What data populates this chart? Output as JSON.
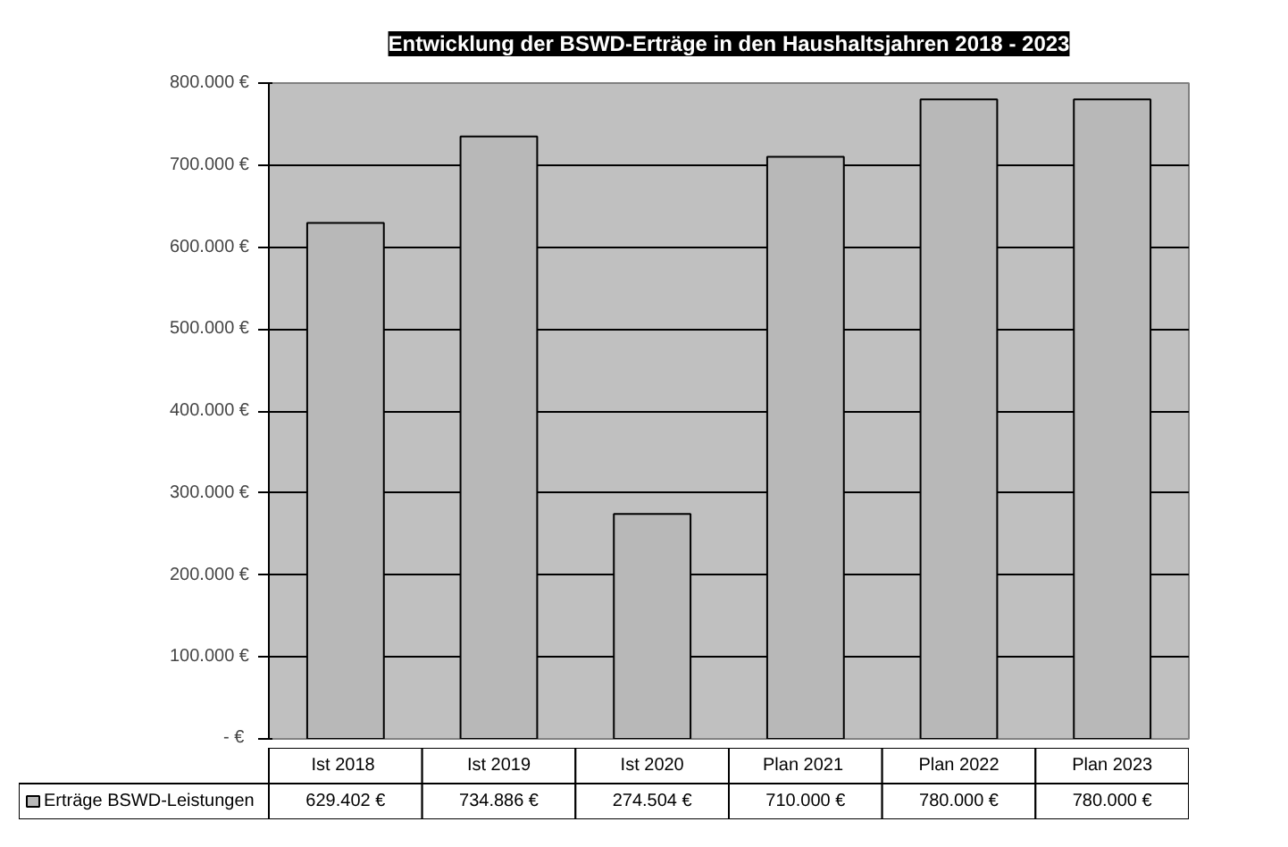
{
  "chart_data": {
    "type": "bar",
    "title": "Entwicklung der BSWD-Erträge in den Haushaltsjahren 2018 - 2023",
    "categories": [
      "Ist  2018",
      "Ist 2019",
      "Ist 2020",
      "Plan  2021",
      "Plan 2022",
      "Plan 2023"
    ],
    "series": [
      {
        "name": "Erträge BSWD-Leistungen",
        "color": "#b8b8b8",
        "values": [
          629402,
          734886,
          274504,
          710000,
          780000,
          780000
        ],
        "value_labels": [
          "629.402 €",
          "734.886 €",
          "274.504 €",
          "710.000 €",
          "780.000 €",
          "780.000 €"
        ]
      }
    ],
    "ylim": [
      0,
      800000
    ],
    "yticks": [
      {
        "value": 0,
        "label": "-  €"
      },
      {
        "value": 100000,
        "label": "100.000 €"
      },
      {
        "value": 200000,
        "label": "200.000 €"
      },
      {
        "value": 300000,
        "label": "300.000 €"
      },
      {
        "value": 400000,
        "label": "400.000 €"
      },
      {
        "value": 500000,
        "label": "500.000 €"
      },
      {
        "value": 600000,
        "label": "600.000 €"
      },
      {
        "value": 700000,
        "label": "700.000 €"
      },
      {
        "value": 800000,
        "label": "800.000 €"
      }
    ],
    "grid": "y",
    "legend": "bottom left"
  }
}
